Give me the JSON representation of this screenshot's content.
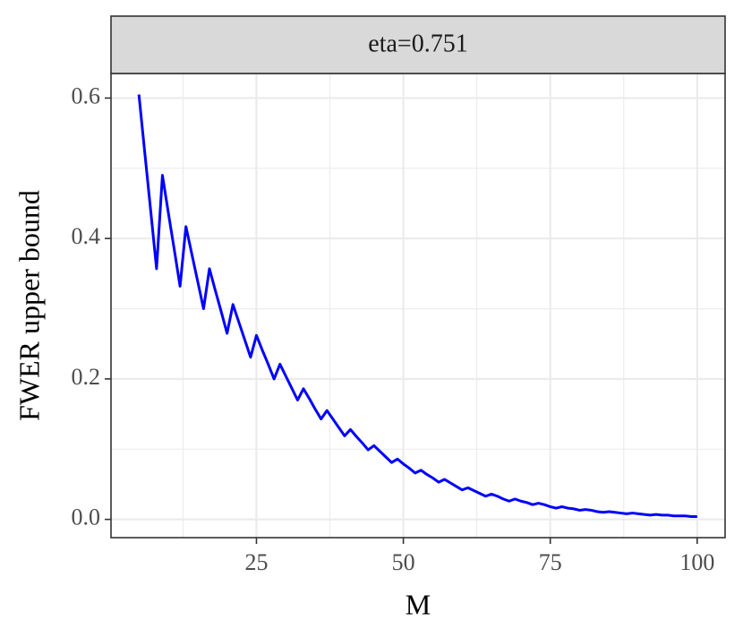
{
  "chart_data": {
    "type": "line",
    "strip_title": "eta=0.751",
    "x_label": "M",
    "y_label": "FWER upper bound",
    "x": [
      5,
      6,
      7,
      8,
      9,
      10,
      11,
      12,
      13,
      14,
      15,
      16,
      17,
      18,
      19,
      20,
      21,
      22,
      23,
      24,
      25,
      26,
      27,
      28,
      29,
      30,
      31,
      32,
      33,
      34,
      35,
      36,
      37,
      38,
      39,
      40,
      41,
      42,
      43,
      44,
      45,
      46,
      47,
      48,
      49,
      50,
      51,
      52,
      53,
      54,
      55,
      56,
      57,
      58,
      59,
      60,
      61,
      62,
      63,
      64,
      65,
      66,
      67,
      68,
      69,
      70,
      71,
      72,
      73,
      74,
      75,
      76,
      77,
      78,
      79,
      80,
      81,
      82,
      83,
      84,
      85,
      86,
      87,
      88,
      89,
      90,
      91,
      92,
      93,
      94,
      95,
      96,
      97,
      98,
      99,
      100
    ],
    "series": [
      {
        "color": "#0000ff",
        "values": [
          0.605,
          0.522,
          0.44,
          0.357,
          0.49,
          0.437,
          0.385,
          0.332,
          0.417,
          0.378,
          0.339,
          0.3,
          0.357,
          0.326,
          0.296,
          0.265,
          0.306,
          0.281,
          0.256,
          0.231,
          0.262,
          0.241,
          0.221,
          0.2,
          0.221,
          0.204,
          0.187,
          0.17,
          0.186,
          0.172,
          0.157,
          0.143,
          0.155,
          0.143,
          0.131,
          0.119,
          0.128,
          0.118,
          0.109,
          0.099,
          0.105,
          0.097,
          0.089,
          0.081,
          0.086,
          0.079,
          0.073,
          0.066,
          0.07,
          0.064,
          0.059,
          0.053,
          0.057,
          0.052,
          0.047,
          0.042,
          0.045,
          0.041,
          0.037,
          0.033,
          0.036,
          0.033,
          0.029,
          0.026,
          0.029,
          0.026,
          0.024,
          0.021,
          0.023,
          0.021,
          0.018,
          0.016,
          0.018,
          0.016,
          0.015,
          0.013,
          0.014,
          0.013,
          0.011,
          0.01,
          0.011,
          0.01,
          0.009,
          0.008,
          0.009,
          0.008,
          0.007,
          0.006,
          0.007,
          0.006,
          0.006,
          0.005,
          0.005,
          0.005,
          0.004,
          0.004
        ]
      }
    ],
    "xlim": [
      0.25,
      104.75
    ],
    "ylim": [
      -0.026,
      0.635
    ],
    "xticks": [
      25,
      50,
      75,
      100
    ],
    "yticks": [
      {
        "value": 0,
        "label": "0.0"
      },
      {
        "value": 0.2,
        "label": "0.2"
      },
      {
        "value": 0.4,
        "label": "0.4"
      },
      {
        "value": 0.6,
        "label": "0.6"
      }
    ],
    "grid": true
  }
}
